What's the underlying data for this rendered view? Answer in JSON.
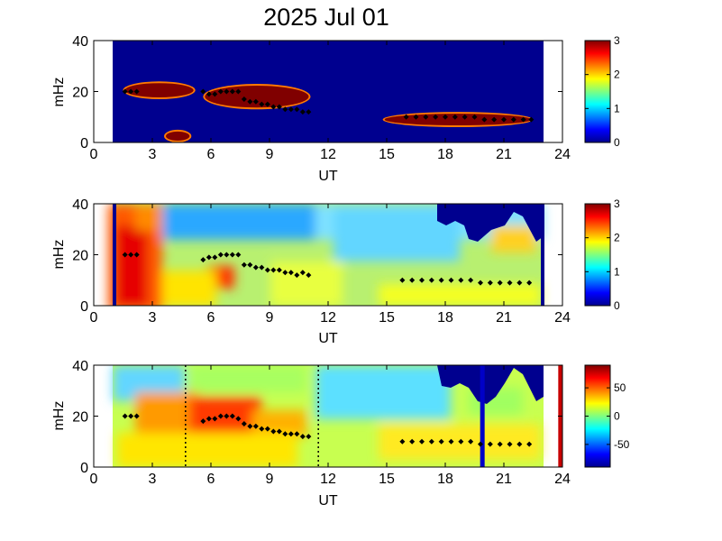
{
  "title": "2025 Jul 01",
  "chart_data": [
    {
      "type": "heatmap",
      "xlabel": "UT",
      "ylabel": "mHz",
      "xlim": [
        0,
        24
      ],
      "ylim": [
        0,
        40
      ],
      "xticks": [
        "0",
        "3",
        "6",
        "9",
        "12",
        "15",
        "18",
        "21",
        "24"
      ],
      "yticks": [
        "0",
        "20",
        "40"
      ],
      "data_range_ut": [
        1.0,
        23.0
      ],
      "colorbar": {
        "min": 0,
        "max": 3,
        "ticks": [
          "0",
          "1",
          "2",
          "3"
        ]
      },
      "background_value": 0,
      "features": [
        {
          "ut": [
            1.5,
            5.2
          ],
          "freq": [
            17,
            24
          ],
          "value": 3
        },
        {
          "ut": [
            5.6,
            11.1
          ],
          "freq": [
            13,
            23
          ],
          "value": 3
        },
        {
          "ut": [
            3.6,
            5.0
          ],
          "freq": [
            0,
            5
          ],
          "value": 3
        },
        {
          "ut": [
            14.8,
            22.5
          ],
          "freq": [
            6,
            12
          ],
          "value": 3
        }
      ],
      "ridge_points": [
        [
          1.6,
          20
        ],
        [
          1.9,
          20
        ],
        [
          2.2,
          20
        ],
        [
          5.6,
          20
        ],
        [
          5.9,
          19
        ],
        [
          6.2,
          19
        ],
        [
          6.5,
          20
        ],
        [
          6.8,
          20
        ],
        [
          7.1,
          20
        ],
        [
          7.4,
          20
        ],
        [
          7.7,
          17
        ],
        [
          8.0,
          16
        ],
        [
          8.3,
          16
        ],
        [
          8.6,
          15
        ],
        [
          8.9,
          15
        ],
        [
          9.2,
          14
        ],
        [
          9.5,
          14
        ],
        [
          9.8,
          13
        ],
        [
          10.1,
          13
        ],
        [
          10.4,
          13
        ],
        [
          10.7,
          12
        ],
        [
          11.0,
          12
        ],
        [
          16.0,
          10
        ],
        [
          16.5,
          10
        ],
        [
          17.0,
          10
        ],
        [
          17.5,
          10
        ],
        [
          18.0,
          10
        ],
        [
          18.5,
          10
        ],
        [
          19.0,
          10
        ],
        [
          19.5,
          10
        ],
        [
          20.0,
          9
        ],
        [
          20.5,
          9
        ],
        [
          21.0,
          9
        ],
        [
          21.5,
          9
        ],
        [
          22.0,
          9
        ],
        [
          22.4,
          9
        ]
      ]
    },
    {
      "type": "heatmap",
      "xlabel": "UT",
      "ylabel": "mHz",
      "xlim": [
        0,
        24
      ],
      "ylim": [
        0,
        40
      ],
      "xticks": [
        "0",
        "3",
        "6",
        "9",
        "12",
        "15",
        "18",
        "21",
        "24"
      ],
      "yticks": [
        "0",
        "20",
        "40"
      ],
      "data_range_ut": [
        1.0,
        23.0
      ],
      "colorbar": {
        "min": 0,
        "max": 3,
        "ticks": [
          "0",
          "1",
          "2",
          "3"
        ]
      },
      "ridge_points": [
        [
          1.6,
          20
        ],
        [
          1.9,
          20
        ],
        [
          2.2,
          20
        ],
        [
          5.6,
          18
        ],
        [
          5.9,
          19
        ],
        [
          6.2,
          19
        ],
        [
          6.5,
          20
        ],
        [
          6.8,
          20
        ],
        [
          7.1,
          20
        ],
        [
          7.4,
          20
        ],
        [
          7.7,
          16
        ],
        [
          8.0,
          16
        ],
        [
          8.3,
          15
        ],
        [
          8.6,
          15
        ],
        [
          8.9,
          14
        ],
        [
          9.2,
          14
        ],
        [
          9.5,
          14
        ],
        [
          9.8,
          13
        ],
        [
          10.1,
          13
        ],
        [
          10.4,
          12
        ],
        [
          10.7,
          13
        ],
        [
          11.0,
          12
        ],
        [
          15.8,
          10
        ],
        [
          16.3,
          10
        ],
        [
          16.8,
          10
        ],
        [
          17.3,
          10
        ],
        [
          17.8,
          10
        ],
        [
          18.3,
          10
        ],
        [
          18.8,
          10
        ],
        [
          19.3,
          10
        ],
        [
          19.8,
          9
        ],
        [
          20.3,
          9
        ],
        [
          20.8,
          9
        ],
        [
          21.3,
          9
        ],
        [
          21.8,
          9
        ],
        [
          22.3,
          9
        ]
      ]
    },
    {
      "type": "heatmap",
      "xlabel": "UT",
      "ylabel": "mHz",
      "xlim": [
        0,
        24
      ],
      "ylim": [
        0,
        40
      ],
      "xticks": [
        "0",
        "3",
        "6",
        "9",
        "12",
        "15",
        "18",
        "21",
        "24"
      ],
      "yticks": [
        "0",
        "20",
        "40"
      ],
      "data_range_ut": [
        1.0,
        23.0
      ],
      "colorbar": {
        "min": -90,
        "max": 90,
        "ticks": [
          "50",
          "0",
          "-50"
        ]
      },
      "dotted_markers_ut": [
        4.7,
        11.5
      ],
      "vertical_lines": [
        {
          "ut": 19.9,
          "color": "#0000c8"
        },
        {
          "ut": 23.9,
          "color": "#c80000"
        }
      ],
      "ridge_points": [
        [
          1.6,
          20
        ],
        [
          1.9,
          20
        ],
        [
          2.2,
          20
        ],
        [
          5.6,
          18
        ],
        [
          5.9,
          19
        ],
        [
          6.2,
          19
        ],
        [
          6.5,
          20
        ],
        [
          6.8,
          20
        ],
        [
          7.1,
          20
        ],
        [
          7.4,
          19
        ],
        [
          7.7,
          17
        ],
        [
          8.0,
          16
        ],
        [
          8.3,
          16
        ],
        [
          8.6,
          15
        ],
        [
          8.9,
          15
        ],
        [
          9.2,
          14
        ],
        [
          9.5,
          14
        ],
        [
          9.8,
          13
        ],
        [
          10.1,
          13
        ],
        [
          10.4,
          13
        ],
        [
          10.7,
          12
        ],
        [
          11.0,
          12
        ],
        [
          15.8,
          10
        ],
        [
          16.3,
          10
        ],
        [
          16.8,
          10
        ],
        [
          17.3,
          10
        ],
        [
          17.8,
          10
        ],
        [
          18.3,
          10
        ],
        [
          18.8,
          10
        ],
        [
          19.3,
          10
        ],
        [
          19.8,
          9
        ],
        [
          20.3,
          9
        ],
        [
          20.8,
          9
        ],
        [
          21.3,
          9
        ],
        [
          21.8,
          9
        ],
        [
          22.3,
          9
        ]
      ]
    }
  ]
}
